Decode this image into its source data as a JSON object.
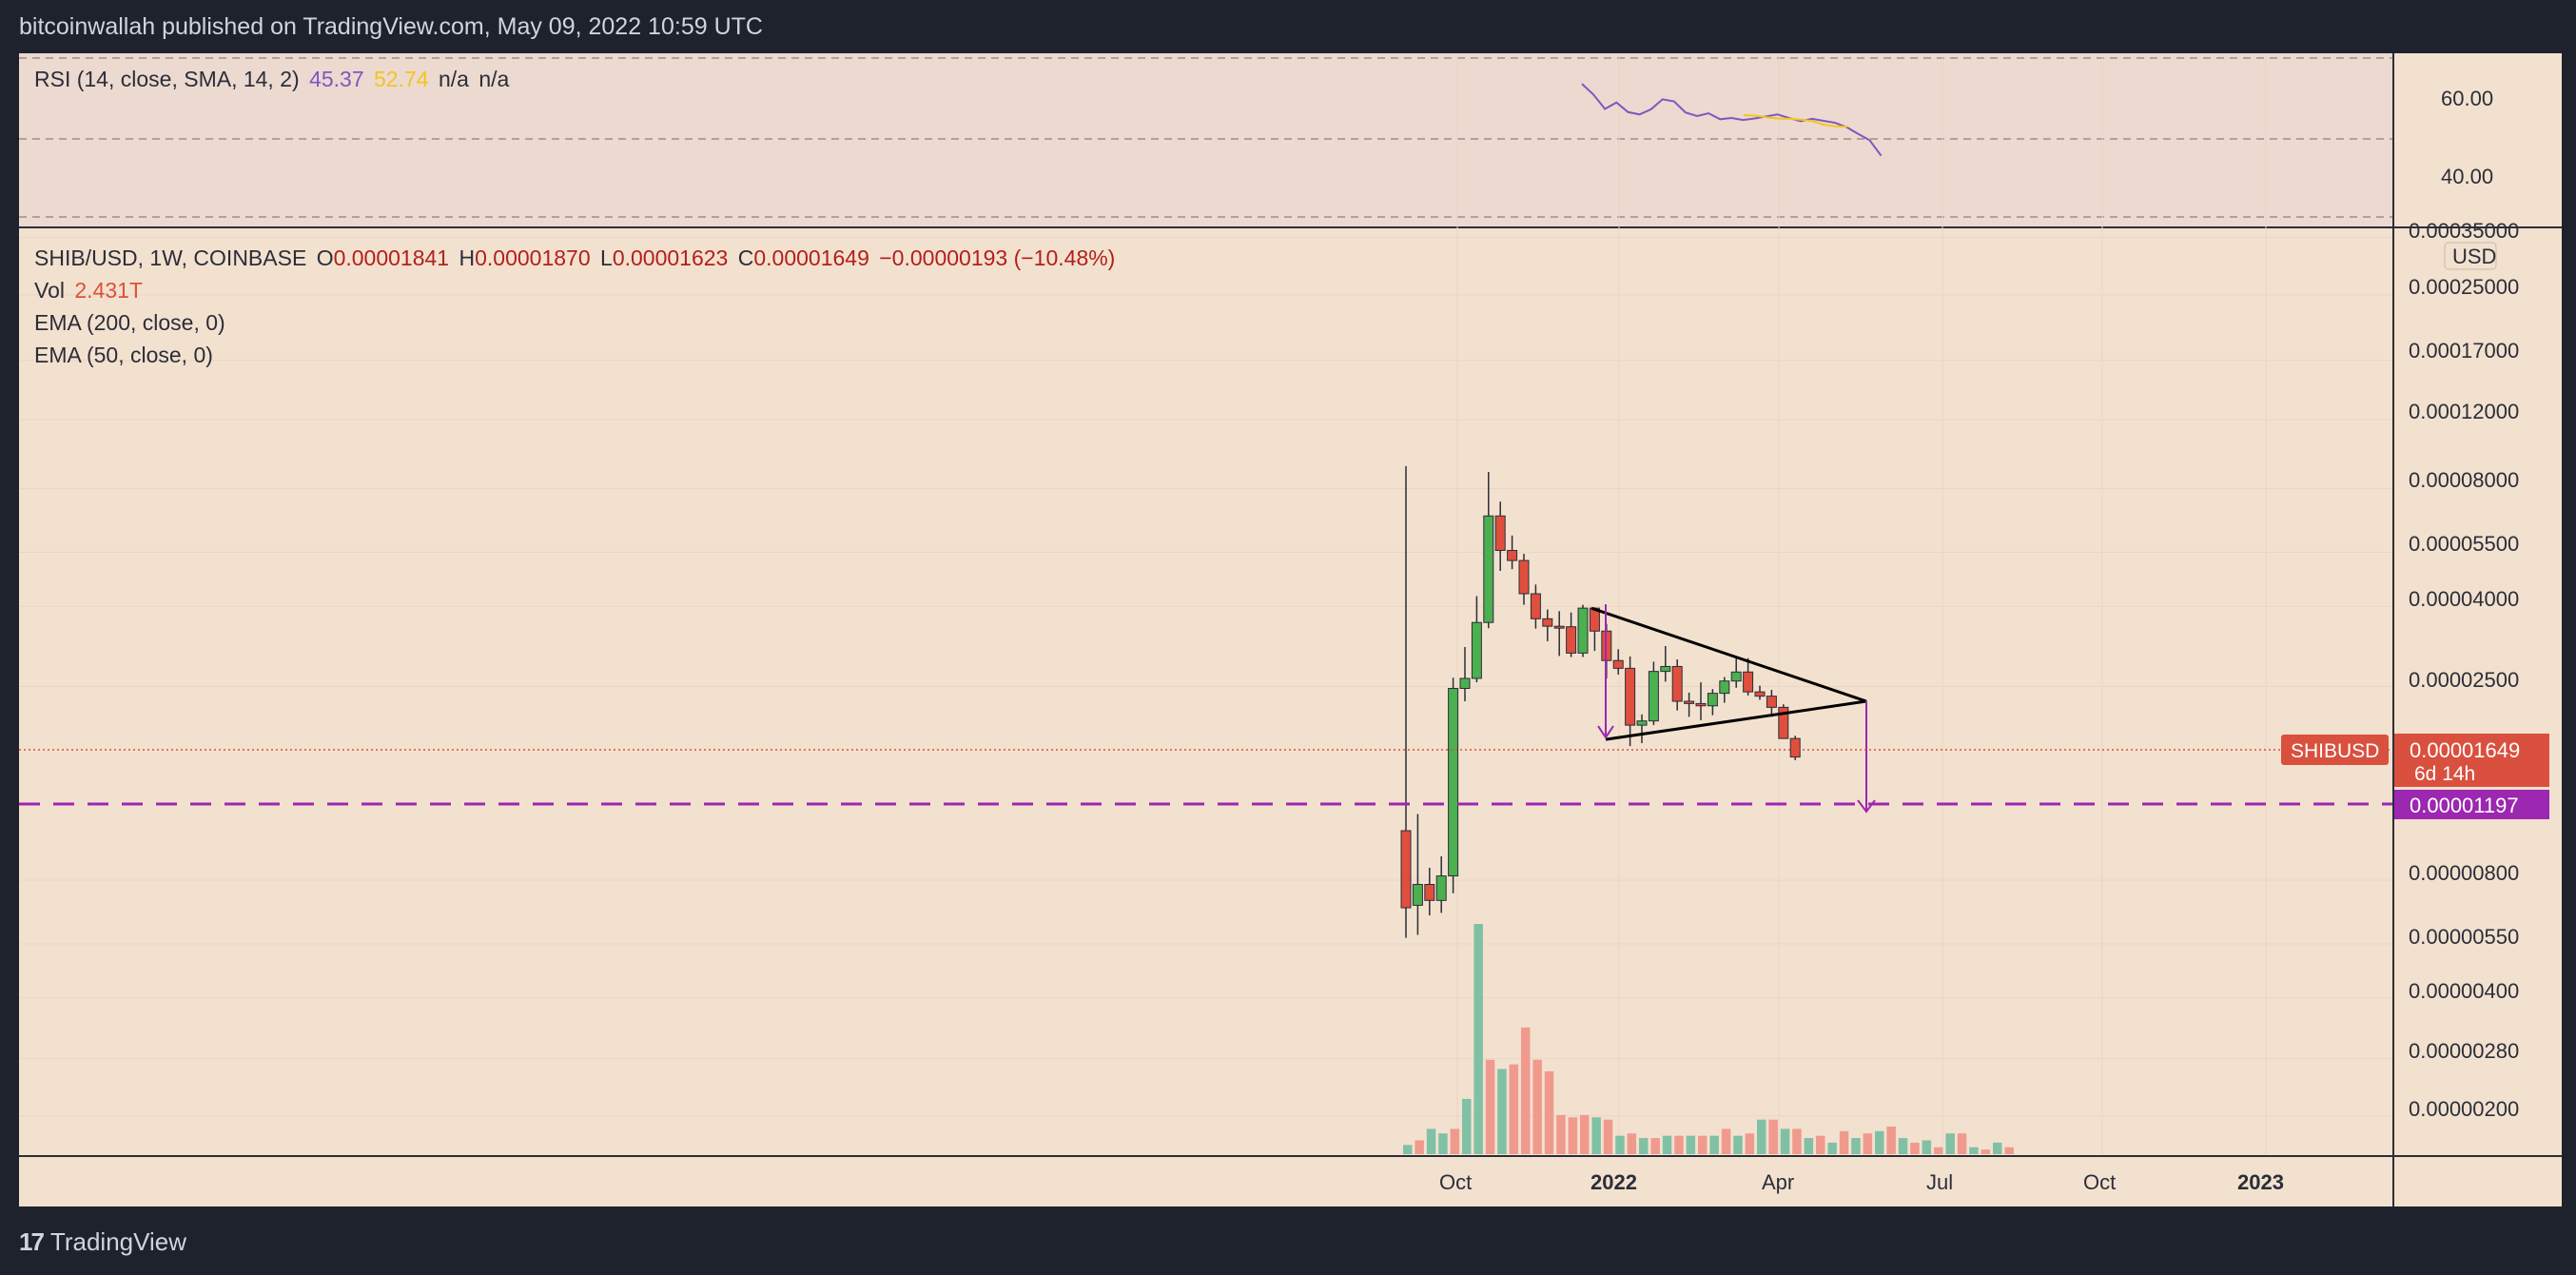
{
  "header": {
    "publisher_line": "bitcoinwallah published on TradingView.com, May 09, 2022 10:59 UTC"
  },
  "rsi_legend": {
    "name": "RSI (14, close, SMA, 14, 2)",
    "value1": "45.37",
    "value2": "52.74",
    "na1": "n/a",
    "na2": "n/a"
  },
  "legend": {
    "symbol": "SHIB/USD, 1W, COINBASE",
    "o_label": "O",
    "o_value": "0.00001841",
    "h_label": "H",
    "h_value": "0.00001870",
    "l_label": "L",
    "l_value": "0.00001623",
    "c_label": "C",
    "c_value": "0.00001649",
    "change": "−0.00000193 (−10.48%)",
    "vol_label": "Vol",
    "vol_value": "2.431T",
    "ema200": "EMA (200, close, 0)",
    "ema50": "EMA (50, close, 0)"
  },
  "price_axis": {
    "currency": "USD",
    "ticks": [
      "0.00035000",
      "0.00025000",
      "0.00017000",
      "0.00012000",
      "0.00008000",
      "0.00005500",
      "0.00004000",
      "0.00002500",
      "0.00000800",
      "0.00000550",
      "0.00000400",
      "0.00000280",
      "0.00000200"
    ]
  },
  "rsi_axis": {
    "ticks": [
      "60.00",
      "40.00"
    ]
  },
  "price_tag": {
    "symbol": "SHIBUSD",
    "price": "0.00001649",
    "countdown": "6d 14h"
  },
  "target_tag": {
    "price": "0.00001197"
  },
  "time_axis": {
    "labels": [
      "Oct",
      "2022",
      "Apr",
      "Jul",
      "Oct",
      "2023"
    ]
  },
  "footer": {
    "logo_mark": "17",
    "brand": "TradingView"
  },
  "colors": {
    "background": "#f3e1cf",
    "frame": "#1e222d",
    "up": "#4caf50",
    "down": "#e04f3d",
    "vol_up": "#80c1a6",
    "vol_down": "#f09a8e",
    "rsi_line": "#7e57c2",
    "rsi_sma": "#f2c61f",
    "target": "#9c27b0",
    "tag_red": "#d9503f"
  },
  "chart_data": {
    "type": "candlestick",
    "timeframe": "1W",
    "scale": "log",
    "x_ticks": [
      "Oct",
      "2022",
      "Apr",
      "Jul",
      "Oct",
      "2023"
    ],
    "y_ticks": [
      0.00035,
      0.00025,
      0.00017,
      0.00012,
      8e-05,
      5.5e-05,
      4e-05,
      2.5e-05,
      8e-06,
      5.5e-06,
      4e-06,
      2.8e-06,
      2e-06
    ],
    "last": {
      "open": 1.841e-05,
      "high": 1.87e-05,
      "low": 1.623e-05,
      "close": 1.649e-05
    },
    "target_level": 1.197e-05,
    "candles": [
      {
        "o": 1.07e-05,
        "h": 9.13e-05,
        "l": 5.7e-06,
        "c": 6.8e-06
      },
      {
        "o": 6.9e-06,
        "h": 1.18e-05,
        "l": 5.8e-06,
        "c": 7.8e-06
      },
      {
        "o": 7.8e-06,
        "h": 8.6e-06,
        "l": 6.5e-06,
        "c": 7.1e-06
      },
      {
        "o": 7.1e-06,
        "h": 9.2e-06,
        "l": 6.6e-06,
        "c": 8.2e-06
      },
      {
        "o": 8.2e-06,
        "h": 2.63e-05,
        "l": 7.4e-06,
        "c": 2.47e-05
      },
      {
        "o": 2.47e-05,
        "h": 3.15e-05,
        "l": 2.29e-05,
        "c": 2.62e-05
      },
      {
        "o": 2.62e-05,
        "h": 4.25e-05,
        "l": 2.56e-05,
        "c": 3.64e-05
      },
      {
        "o": 3.64e-05,
        "h": 8.82e-05,
        "l": 3.52e-05,
        "c": 6.81e-05
      },
      {
        "o": 6.81e-05,
        "h": 7.41e-05,
        "l": 4.93e-05,
        "c": 5.56e-05
      },
      {
        "o": 5.56e-05,
        "h": 6.07e-05,
        "l": 4.98e-05,
        "c": 5.24e-05
      },
      {
        "o": 5.24e-05,
        "h": 5.45e-05,
        "l": 4.04e-05,
        "c": 4.31e-05
      },
      {
        "o": 4.31e-05,
        "h": 4.55e-05,
        "l": 3.51e-05,
        "c": 3.72e-05
      },
      {
        "o": 3.72e-05,
        "h": 3.93e-05,
        "l": 3.26e-05,
        "c": 3.56e-05
      },
      {
        "o": 3.56e-05,
        "h": 3.89e-05,
        "l": 2.99e-05,
        "c": 3.55e-05
      },
      {
        "o": 3.55e-05,
        "h": 3.86e-05,
        "l": 2.97e-05,
        "c": 3.04e-05
      },
      {
        "o": 3.04e-05,
        "h": 4.04e-05,
        "l": 2.97e-05,
        "c": 3.96e-05
      },
      {
        "o": 3.96e-05,
        "h": 3.98e-05,
        "l": 3.08e-05,
        "c": 3.46e-05
      },
      {
        "o": 3.46e-05,
        "h": 3.61e-05,
        "l": 2.62e-05,
        "c": 2.91e-05
      },
      {
        "o": 2.91e-05,
        "h": 3.11e-05,
        "l": 2.68e-05,
        "c": 2.78e-05
      },
      {
        "o": 2.78e-05,
        "h": 2.98e-05,
        "l": 1.76e-05,
        "c": 1.99e-05
      },
      {
        "o": 1.99e-05,
        "h": 2.12e-05,
        "l": 1.79e-05,
        "c": 2.04e-05
      },
      {
        "o": 2.04e-05,
        "h": 2.89e-05,
        "l": 1.99e-05,
        "c": 2.73e-05
      },
      {
        "o": 2.73e-05,
        "h": 3.17e-05,
        "l": 2.57e-05,
        "c": 2.81e-05
      },
      {
        "o": 2.81e-05,
        "h": 2.93e-05,
        "l": 2.17e-05,
        "c": 2.29e-05
      },
      {
        "o": 2.29e-05,
        "h": 2.41e-05,
        "l": 2.09e-05,
        "c": 2.26e-05
      },
      {
        "o": 2.26e-05,
        "h": 2.56e-05,
        "l": 2.05e-05,
        "c": 2.23e-05
      },
      {
        "o": 2.23e-05,
        "h": 2.46e-05,
        "l": 2.11e-05,
        "c": 2.4e-05
      },
      {
        "o": 2.4e-05,
        "h": 2.64e-05,
        "l": 2.27e-05,
        "c": 2.58e-05
      },
      {
        "o": 2.58e-05,
        "h": 2.97e-05,
        "l": 2.48e-05,
        "c": 2.72e-05
      },
      {
        "o": 2.72e-05,
        "h": 2.95e-05,
        "l": 2.37e-05,
        "c": 2.42e-05
      },
      {
        "o": 2.42e-05,
        "h": 2.51e-05,
        "l": 2.31e-05,
        "c": 2.36e-05
      },
      {
        "o": 2.36e-05,
        "h": 2.45e-05,
        "l": 2.09e-05,
        "c": 2.21e-05
      },
      {
        "o": 2.21e-05,
        "h": 2.25e-05,
        "l": 1.84e-05,
        "c": 1.84e-05
      },
      {
        "o": 1.84e-05,
        "h": 1.87e-05,
        "l": 1.62e-05,
        "c": 1.65e-05
      }
    ],
    "volume_relative": [
      0.04,
      0.06,
      0.11,
      0.09,
      0.11,
      0.24,
      1.0,
      0.41,
      0.37,
      0.39,
      0.55,
      0.41,
      0.36,
      0.17,
      0.16,
      0.17,
      0.16,
      0.15,
      0.08,
      0.09,
      0.07,
      0.07,
      0.08,
      0.08,
      0.08,
      0.08,
      0.08,
      0.11,
      0.08,
      0.09,
      0.15,
      0.15,
      0.11,
      0.11,
      0.07,
      0.08,
      0.05,
      0.1,
      0.07,
      0.09,
      0.1,
      0.12,
      0.07,
      0.05,
      0.06,
      0.03,
      0.09,
      0.09,
      0.03,
      0.02,
      0.05,
      0.03
    ],
    "rsi": [
      63.5,
      60.8,
      57.2,
      58.8,
      56.4,
      55.8,
      57.1,
      59.6,
      59.1,
      56.3,
      55.4,
      56.1,
      54.6,
      54.9,
      54.4,
      54.8,
      55.3,
      55.8,
      54.9,
      54.1,
      54.7,
      54.2,
      53.7,
      52.6,
      50.9,
      49.3,
      45.4
    ],
    "rsi_sma": [
      55.6,
      55.5,
      55.1,
      54.8,
      54.7,
      54.5,
      54.1,
      53.2,
      52.8,
      52.7
    ],
    "rsi_levels": [
      70,
      50,
      30
    ],
    "triangle": {
      "upper": [
        3.96e-05,
        2.29e-05
      ],
      "lower": [
        1.83e-05,
        2.29e-05
      ],
      "measured_move": 1.197e-05
    }
  }
}
